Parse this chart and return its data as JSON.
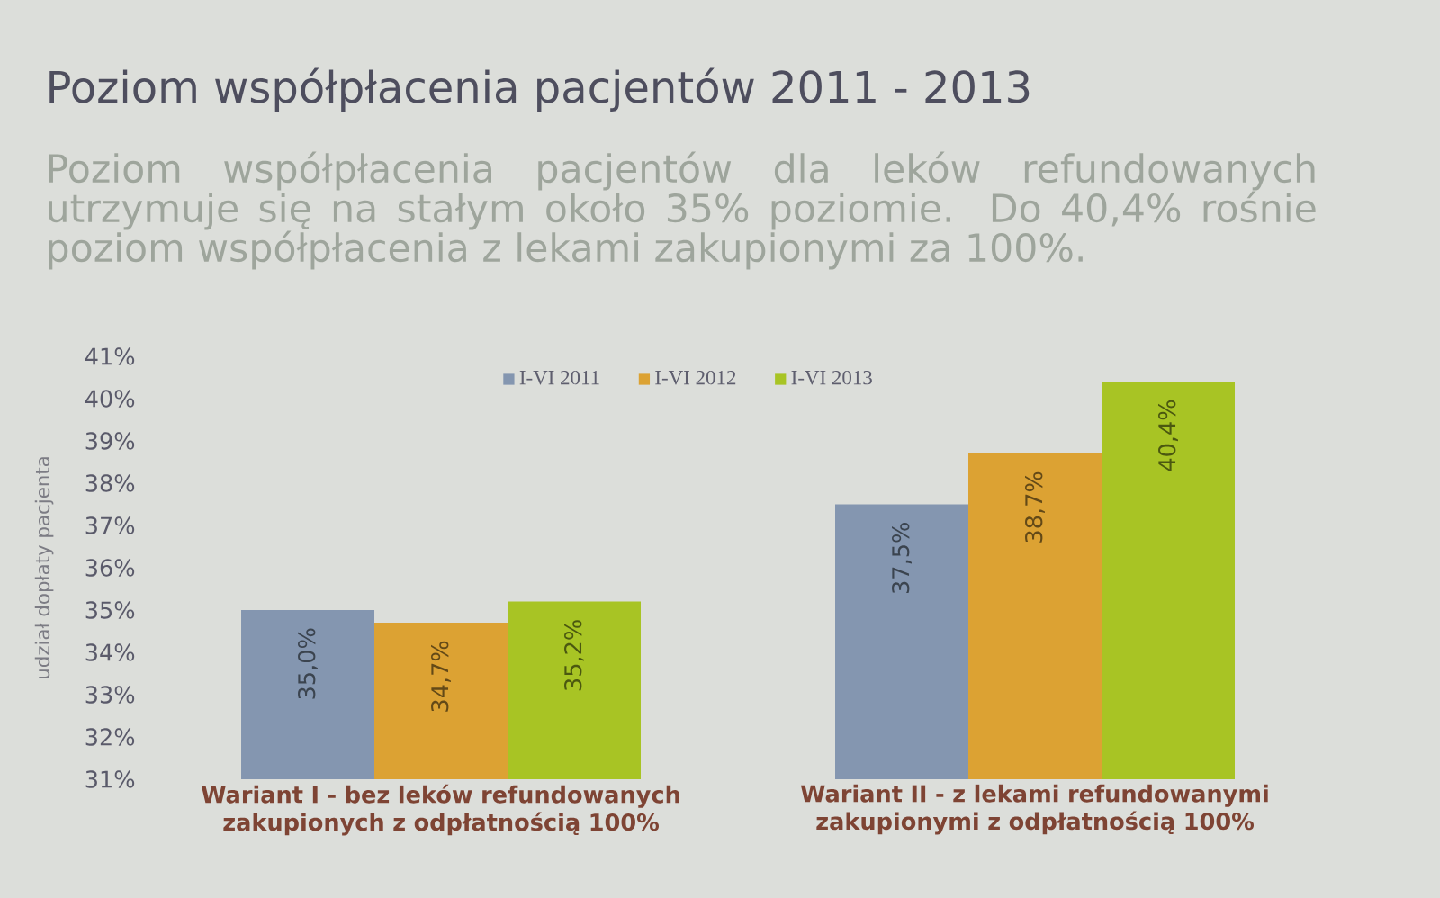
{
  "chart_data": {
    "type": "bar",
    "title": "Poziom współpłacenia pacjentów 2011 - 2013",
    "subtitle": "Poziom współpłacenia pacjentów dla leków refundowanych utrzymuje się na stałym około 35% poziomie. Do 40,4% rośnie poziom współpłacenia z lekami zakupionymi za 100%.",
    "ylabel": "udział dopłaty pacjenta",
    "categories": [
      "Wariant I - bez leków refundowanych zakupionych z odpłatnością 100%",
      "Wariant II - z lekami refundowanymi zakupionymi z odpłatnością 100%"
    ],
    "series": [
      {
        "name": "I-VI 2011",
        "color": "#8496b0",
        "values": [
          35.0,
          37.5
        ],
        "value_labels": [
          "35,0%",
          "37,5%"
        ]
      },
      {
        "name": "I-VI 2012",
        "color": "#dca233",
        "values": [
          34.7,
          38.7
        ],
        "value_labels": [
          "34,7%",
          "38,7%"
        ]
      },
      {
        "name": "I-VI 2013",
        "color": "#a8c424",
        "values": [
          35.2,
          40.4
        ],
        "value_labels": [
          "35,2%",
          "40,4%"
        ]
      }
    ],
    "ylim": [
      31,
      41
    ],
    "yticks": [
      {
        "value": 31,
        "label": "31%"
      },
      {
        "value": 32,
        "label": "32%"
      },
      {
        "value": 33,
        "label": "33%"
      },
      {
        "value": 34,
        "label": "34%"
      },
      {
        "value": 35,
        "label": "35%"
      },
      {
        "value": 36,
        "label": "36%"
      },
      {
        "value": 37,
        "label": "37%"
      },
      {
        "value": 38,
        "label": "38%"
      },
      {
        "value": 39,
        "label": "39%"
      },
      {
        "value": 40,
        "label": "40%"
      },
      {
        "value": 41,
        "label": "41%"
      }
    ],
    "legend": "top"
  }
}
